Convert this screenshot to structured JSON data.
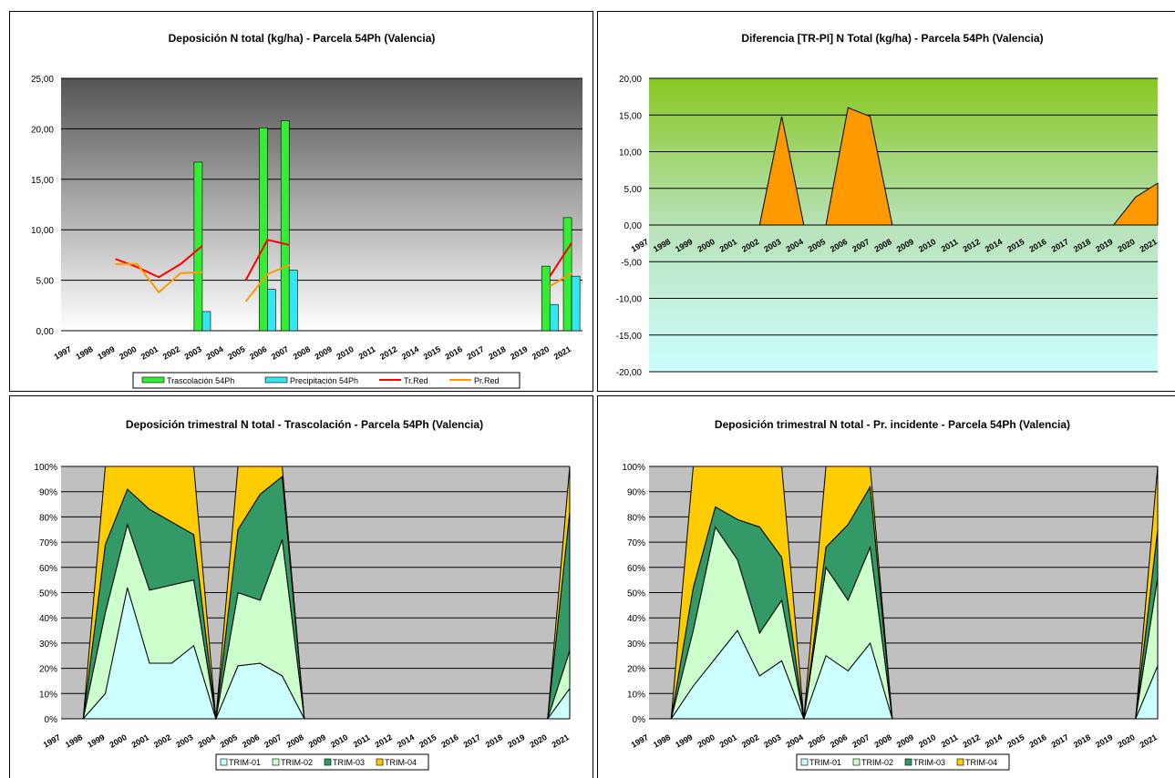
{
  "years": [
    "1997",
    "1998",
    "1999",
    "2000",
    "2001",
    "2002",
    "2003",
    "2004",
    "2005",
    "2006",
    "2007",
    "2008",
    "2009",
    "2010",
    "2011",
    "2012",
    "2014",
    "2015",
    "2016",
    "2017",
    "2018",
    "2019",
    "2020",
    "2021"
  ],
  "chart_data": [
    {
      "id": "deposicion",
      "type": "bar",
      "title": "Deposición N total (kg/ha) - Parcela 54Ph (Valencia)",
      "ylim": [
        0,
        25
      ],
      "yticks": [
        "0,00",
        "5,00",
        "10,00",
        "15,00",
        "20,00",
        "25,00"
      ],
      "categories": [
        "1997",
        "1998",
        "1999",
        "2000",
        "2001",
        "2002",
        "2003",
        "2004",
        "2005",
        "2006",
        "2007",
        "2008",
        "2009",
        "2010",
        "2011",
        "2012",
        "2014",
        "2015",
        "2016",
        "2017",
        "2018",
        "2019",
        "2020",
        "2021"
      ],
      "series": [
        {
          "name": "Trascolación 54Ph",
          "kind": "bar",
          "color": "#33ee33",
          "values": [
            null,
            null,
            null,
            null,
            null,
            null,
            16.7,
            null,
            null,
            20.1,
            20.8,
            null,
            null,
            null,
            null,
            null,
            null,
            null,
            null,
            null,
            null,
            null,
            6.4,
            11.2
          ]
        },
        {
          "name": "Precipitación 54Ph",
          "kind": "bar",
          "color": "#33e6f0",
          "values": [
            null,
            null,
            null,
            null,
            null,
            null,
            1.9,
            null,
            null,
            4.1,
            6.0,
            null,
            null,
            null,
            null,
            null,
            null,
            null,
            null,
            null,
            null,
            null,
            2.6,
            5.4
          ]
        },
        {
          "name": "Tr.Red",
          "kind": "line",
          "color": "#ff0000",
          "values": [
            null,
            null,
            7.1,
            6.3,
            5.3,
            6.6,
            8.4,
            null,
            5.0,
            9.0,
            8.5,
            null,
            null,
            null,
            null,
            null,
            null,
            null,
            null,
            null,
            null,
            null,
            5.4,
            8.7
          ]
        },
        {
          "name": "Pr.Red",
          "kind": "line",
          "color": "#ff9900",
          "values": [
            null,
            null,
            6.6,
            6.6,
            3.8,
            5.7,
            5.8,
            null,
            2.9,
            5.6,
            6.5,
            null,
            null,
            null,
            null,
            null,
            null,
            null,
            null,
            null,
            null,
            null,
            4.4,
            5.7
          ]
        }
      ]
    },
    {
      "id": "diferencia",
      "type": "area",
      "title": "Diferencia [TR-PI] N Total (kg/ha) - Parcela 54Ph (Valencia)",
      "ylim": [
        -20,
        20
      ],
      "yticks": [
        "-20,00",
        "-15,00",
        "-10,00",
        "-5,00",
        "0,00",
        "5,00",
        "10,00",
        "15,00",
        "20,00"
      ],
      "categories": [
        "1997",
        "1998",
        "1999",
        "2000",
        "2001",
        "2002",
        "2003",
        "2004",
        "2005",
        "2006",
        "2007",
        "2008",
        "2009",
        "2010",
        "2011",
        "2012",
        "2014",
        "2015",
        "2016",
        "2017",
        "2018",
        "2019",
        "2020",
        "2021"
      ],
      "series": [
        {
          "name": "",
          "color": "#ff9900",
          "values": [
            0,
            0,
            0,
            0,
            0,
            0,
            14.8,
            0,
            0,
            16.0,
            14.8,
            0,
            0,
            0,
            0,
            0,
            0,
            0,
            0,
            0,
            0,
            0,
            3.8,
            5.7
          ]
        }
      ]
    },
    {
      "id": "trim_tras",
      "type": "area",
      "stacked": "percent",
      "title": "Deposición trimestral N total - Trascolación - Parcela 54Ph (Valencia)",
      "yticks": [
        "0%",
        "10%",
        "20%",
        "30%",
        "40%",
        "50%",
        "60%",
        "70%",
        "80%",
        "90%",
        "100%"
      ],
      "categories": [
        "1997",
        "1998",
        "1999",
        "2000",
        "2001",
        "2002",
        "2003",
        "2004",
        "2005",
        "2006",
        "2007",
        "2008",
        "2009",
        "2010",
        "2011",
        "2012",
        "2014",
        "2015",
        "2016",
        "2017",
        "2018",
        "2019",
        "2020",
        "2021"
      ],
      "series": [
        {
          "name": "TRIM-01",
          "color": "#ccffff",
          "values": [
            0,
            0,
            10,
            52,
            22,
            22,
            29,
            0,
            21,
            22,
            17,
            0,
            0,
            0,
            0,
            0,
            0,
            0,
            0,
            0,
            0,
            0,
            0,
            12
          ]
        },
        {
          "name": "TRIM-02",
          "color": "#ccffcc",
          "values": [
            0,
            0,
            32,
            25,
            29,
            31,
            26,
            0,
            29,
            25,
            54,
            0,
            0,
            0,
            0,
            0,
            0,
            0,
            0,
            0,
            0,
            0,
            0,
            15
          ]
        },
        {
          "name": "TRIM-03",
          "color": "#339966",
          "values": [
            0,
            0,
            27,
            14,
            32,
            25,
            18,
            0,
            25,
            42,
            25,
            0,
            0,
            0,
            0,
            0,
            0,
            0,
            0,
            0,
            0,
            0,
            0,
            55
          ]
        },
        {
          "name": "TRIM-04",
          "color": "#ffcc00",
          "values": [
            0,
            0,
            31,
            9,
            17,
            22,
            27,
            0,
            25,
            11,
            4,
            0,
            0,
            0,
            0,
            0,
            0,
            0,
            0,
            0,
            0,
            0,
            0,
            18
          ]
        }
      ]
    },
    {
      "id": "trim_inc",
      "type": "area",
      "stacked": "percent",
      "title": "Deposición trimestral N total - Pr. incidente - Parcela 54Ph (Valencia)",
      "yticks": [
        "0%",
        "10%",
        "20%",
        "30%",
        "40%",
        "50%",
        "60%",
        "70%",
        "80%",
        "90%",
        "100%"
      ],
      "categories": [
        "1997",
        "1998",
        "1999",
        "2000",
        "2001",
        "2002",
        "2003",
        "2004",
        "2005",
        "2006",
        "2007",
        "2008",
        "2009",
        "2010",
        "2011",
        "2012",
        "2014",
        "2015",
        "2016",
        "2017",
        "2018",
        "2019",
        "2020",
        "2021"
      ],
      "series": [
        {
          "name": "TRIM-01",
          "color": "#ccffff",
          "values": [
            0,
            0,
            13,
            24,
            35,
            17,
            23,
            0,
            25,
            19,
            30,
            0,
            0,
            0,
            0,
            0,
            0,
            0,
            0,
            0,
            0,
            0,
            0,
            21
          ]
        },
        {
          "name": "TRIM-02",
          "color": "#ccffcc",
          "values": [
            0,
            0,
            22,
            52,
            28,
            17,
            24,
            0,
            35,
            28,
            38,
            0,
            0,
            0,
            0,
            0,
            0,
            0,
            0,
            0,
            0,
            0,
            0,
            35
          ]
        },
        {
          "name": "TRIM-03",
          "color": "#339966",
          "values": [
            0,
            0,
            17,
            8,
            16,
            42,
            17,
            0,
            8,
            30,
            24,
            0,
            0,
            0,
            0,
            0,
            0,
            0,
            0,
            0,
            0,
            0,
            0,
            19
          ]
        },
        {
          "name": "TRIM-04",
          "color": "#ffcc00",
          "values": [
            0,
            0,
            48,
            16,
            21,
            24,
            36,
            0,
            32,
            23,
            8,
            0,
            0,
            0,
            0,
            0,
            0,
            0,
            0,
            0,
            0,
            0,
            0,
            25
          ]
        }
      ]
    }
  ]
}
